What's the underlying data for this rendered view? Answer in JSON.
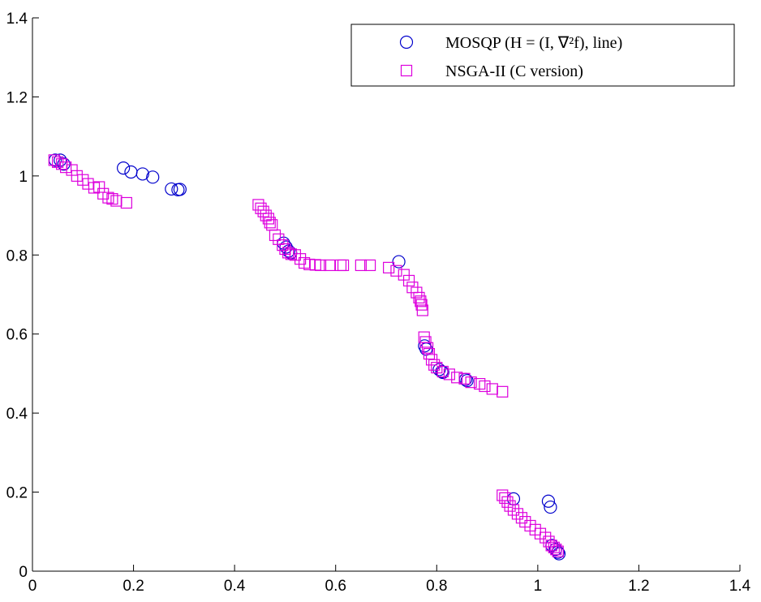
{
  "chart_data": {
    "type": "scatter",
    "title": "",
    "xlabel": "",
    "ylabel": "",
    "xlim": [
      0,
      1.4
    ],
    "ylim": [
      0,
      1.4
    ],
    "x_ticks": [
      "0",
      "0.2",
      "0.4",
      "0.6",
      "0.8",
      "1",
      "1.2",
      "1.4"
    ],
    "y_ticks": [
      "0",
      "0.2",
      "0.4",
      "0.6",
      "0.8",
      "1",
      "1.2",
      "1.4"
    ],
    "grid": false,
    "legend_position": "top-right",
    "series": [
      {
        "name": "MOSQP (H = (I, ∇²f), line)",
        "marker": "circle",
        "color": "#0000cc",
        "points": [
          [
            0.045,
            1.04
          ],
          [
            0.055,
            1.04
          ],
          [
            0.062,
            1.03
          ],
          [
            0.18,
            1.02
          ],
          [
            0.195,
            1.01
          ],
          [
            0.218,
            1.005
          ],
          [
            0.238,
            0.997
          ],
          [
            0.275,
            0.967
          ],
          [
            0.288,
            0.965
          ],
          [
            0.292,
            0.966
          ],
          [
            0.497,
            0.83
          ],
          [
            0.502,
            0.82
          ],
          [
            0.507,
            0.81
          ],
          [
            0.511,
            0.805
          ],
          [
            0.725,
            0.783
          ],
          [
            0.776,
            0.57
          ],
          [
            0.779,
            0.562
          ],
          [
            0.805,
            0.51
          ],
          [
            0.81,
            0.505
          ],
          [
            0.812,
            0.503
          ],
          [
            0.857,
            0.485
          ],
          [
            0.86,
            0.482
          ],
          [
            0.952,
            0.183
          ],
          [
            1.021,
            0.177
          ],
          [
            1.025,
            0.162
          ],
          [
            1.028,
            0.065
          ],
          [
            1.035,
            0.055
          ],
          [
            1.04,
            0.048
          ],
          [
            1.042,
            0.044
          ]
        ]
      },
      {
        "name": "NSGA-II (C version)",
        "marker": "square",
        "color": "#dd00dd",
        "points": [
          [
            0.043,
            1.04
          ],
          [
            0.05,
            1.035
          ],
          [
            0.058,
            1.03
          ],
          [
            0.066,
            1.022
          ],
          [
            0.078,
            1.015
          ],
          [
            0.088,
            1.0
          ],
          [
            0.1,
            0.99
          ],
          [
            0.11,
            0.98
          ],
          [
            0.122,
            0.97
          ],
          [
            0.132,
            0.972
          ],
          [
            0.14,
            0.955
          ],
          [
            0.15,
            0.945
          ],
          [
            0.158,
            0.942
          ],
          [
            0.166,
            0.937
          ],
          [
            0.186,
            0.932
          ],
          [
            0.447,
            0.927
          ],
          [
            0.452,
            0.918
          ],
          [
            0.457,
            0.91
          ],
          [
            0.462,
            0.9
          ],
          [
            0.467,
            0.892
          ],
          [
            0.47,
            0.882
          ],
          [
            0.474,
            0.876
          ],
          [
            0.48,
            0.85
          ],
          [
            0.487,
            0.84
          ],
          [
            0.495,
            0.825
          ],
          [
            0.5,
            0.815
          ],
          [
            0.506,
            0.806
          ],
          [
            0.512,
            0.802
          ],
          [
            0.52,
            0.8
          ],
          [
            0.53,
            0.79
          ],
          [
            0.538,
            0.78
          ],
          [
            0.548,
            0.776
          ],
          [
            0.56,
            0.775
          ],
          [
            0.57,
            0.774
          ],
          [
            0.588,
            0.774
          ],
          [
            0.61,
            0.774
          ],
          [
            0.615,
            0.774
          ],
          [
            0.65,
            0.774
          ],
          [
            0.668,
            0.774
          ],
          [
            0.705,
            0.768
          ],
          [
            0.72,
            0.76
          ],
          [
            0.735,
            0.75
          ],
          [
            0.745,
            0.735
          ],
          [
            0.752,
            0.718
          ],
          [
            0.76,
            0.705
          ],
          [
            0.765,
            0.692
          ],
          [
            0.768,
            0.683
          ],
          [
            0.77,
            0.674
          ],
          [
            0.772,
            0.66
          ],
          [
            0.775,
            0.592
          ],
          [
            0.778,
            0.58
          ],
          [
            0.782,
            0.565
          ],
          [
            0.785,
            0.55
          ],
          [
            0.79,
            0.535
          ],
          [
            0.795,
            0.522
          ],
          [
            0.8,
            0.515
          ],
          [
            0.812,
            0.505
          ],
          [
            0.825,
            0.498
          ],
          [
            0.84,
            0.49
          ],
          [
            0.855,
            0.487
          ],
          [
            0.868,
            0.478
          ],
          [
            0.885,
            0.474
          ],
          [
            0.895,
            0.468
          ],
          [
            0.91,
            0.461
          ],
          [
            0.93,
            0.454
          ],
          [
            0.93,
            0.192
          ],
          [
            0.935,
            0.185
          ],
          [
            0.94,
            0.175
          ],
          [
            0.945,
            0.165
          ],
          [
            0.952,
            0.155
          ],
          [
            0.96,
            0.145
          ],
          [
            0.968,
            0.135
          ],
          [
            0.975,
            0.125
          ],
          [
            0.985,
            0.115
          ],
          [
            0.995,
            0.105
          ],
          [
            1.005,
            0.095
          ],
          [
            1.015,
            0.085
          ],
          [
            1.022,
            0.075
          ],
          [
            1.027,
            0.065
          ],
          [
            1.032,
            0.06
          ],
          [
            1.036,
            0.055
          ],
          [
            1.04,
            0.05
          ]
        ]
      }
    ]
  }
}
